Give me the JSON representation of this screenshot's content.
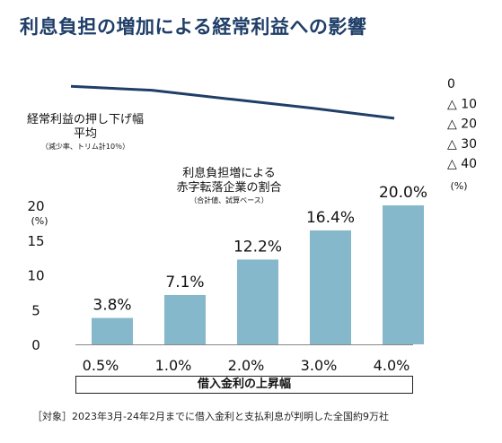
{
  "title": "利息負担の増加による経常利益への影響",
  "line_label": {
    "line1": "経常利益の押し下げ幅",
    "line2": "平均",
    "sub": "（減少率、トリム計10％）"
  },
  "bar_label": {
    "line1": "利息負担増による",
    "line2": "赤字転落企業の割合",
    "sub": "（合計値、試算ベース）"
  },
  "x_axis_label": "借入金利の上昇幅",
  "footnote": "［対象］2023年3月-24年2月までに借入金利と支払利息が判明した全国約9万社",
  "chart_data": [
    {
      "type": "bar",
      "categories": [
        "0.5%",
        "1.0%",
        "2.0%",
        "3.0%",
        "4.0%"
      ],
      "values": [
        3.8,
        7.1,
        12.2,
        16.4,
        20.0
      ],
      "data_labels": [
        "3.8%",
        "7.1%",
        "12.2%",
        "16.4%",
        "20.0%"
      ],
      "ylim": [
        0,
        20
      ],
      "yticks": [
        "0",
        "5",
        "10",
        "15",
        "20"
      ],
      "yunit": "(%)",
      "color": "#86b8cc"
    },
    {
      "type": "line",
      "categories": [
        "0.5%",
        "1.0%",
        "2.0%",
        "3.0%",
        "4.0%"
      ],
      "values": [
        -1.5,
        -3.4,
        -8.0,
        -12.5,
        -17.5
      ],
      "ylim": [
        0,
        -40
      ],
      "yticks": [
        "0",
        "△ 10",
        "△ 20",
        "△ 30",
        "△ 40"
      ],
      "yunit": "(%)",
      "color": "#1f3e68"
    }
  ]
}
